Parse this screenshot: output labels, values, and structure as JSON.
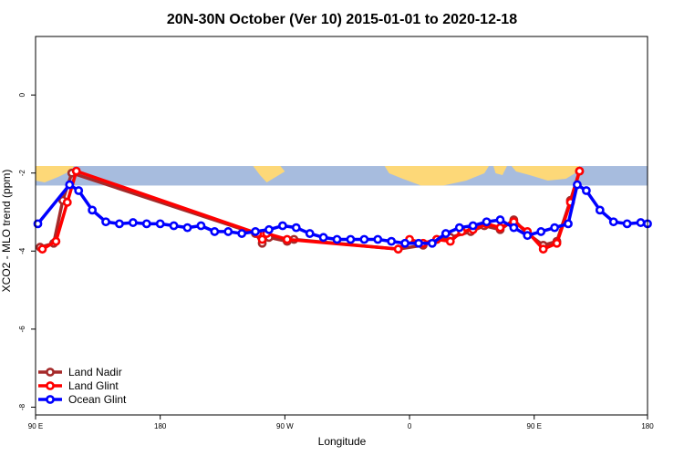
{
  "chart_data": {
    "type": "line",
    "title": "20N-30N October (Ver 10)   2015-01-01 to 2020-12-18",
    "xlabel": "Longitude",
    "ylabel": "XCO2 - MLO trend (ppm)",
    "xlim": [
      -90,
      180
    ],
    "ylim": [
      -8.2,
      1.5
    ],
    "x_ticks": [
      {
        "value": -90,
        "label": "90 E"
      },
      {
        "value": -35,
        "label": "180"
      },
      {
        "value": 20,
        "label": "90 W"
      },
      {
        "value": 75,
        "label": "0"
      },
      {
        "value": 130,
        "label": "90 E"
      },
      {
        "value": 180,
        "label": "180"
      }
    ],
    "y_ticks": [
      {
        "value": 0,
        "label": "0"
      },
      {
        "value": -2,
        "label": "-2"
      },
      {
        "value": -4,
        "label": "-4"
      },
      {
        "value": -6,
        "label": "-6"
      },
      {
        "value": -8,
        "label": "-8"
      }
    ],
    "map_strip": {
      "y_top": -1.82,
      "y_bottom": -2.32
    },
    "legend_position": "bottom-left",
    "series": [
      {
        "name": "Land Nadir",
        "color": "#a52a2a",
        "points": [
          [
            -88,
            -3.9
          ],
          [
            -82,
            -3.8
          ],
          [
            -78,
            -2.7
          ],
          [
            -74,
            -2.0
          ],
          [
            7,
            -3.55
          ],
          [
            10,
            -3.8
          ],
          [
            13,
            -3.65
          ],
          [
            21,
            -3.75
          ],
          [
            24,
            -3.7
          ],
          [
            70,
            -3.95
          ],
          [
            81,
            -3.85
          ],
          [
            87,
            -3.7
          ],
          [
            93,
            -3.65
          ],
          [
            102,
            -3.5
          ],
          [
            108,
            -3.35
          ],
          [
            115,
            -3.45
          ],
          [
            121,
            -3.2
          ],
          [
            127,
            -3.55
          ],
          [
            134,
            -3.85
          ],
          [
            140,
            -3.75
          ],
          [
            146,
            -2.7
          ],
          [
            150,
            -1.95
          ]
        ]
      },
      {
        "name": "Land Glint",
        "color": "#ff0000",
        "points": [
          [
            -87,
            -3.95
          ],
          [
            -81,
            -3.75
          ],
          [
            -76,
            -2.75
          ],
          [
            -72,
            -1.95
          ],
          [
            8,
            -3.55
          ],
          [
            10,
            -3.7
          ],
          [
            12,
            -3.55
          ],
          [
            21,
            -3.7
          ],
          [
            70,
            -3.95
          ],
          [
            75,
            -3.7
          ],
          [
            81,
            -3.8
          ],
          [
            87,
            -3.7
          ],
          [
            93,
            -3.75
          ],
          [
            98,
            -3.5
          ],
          [
            103,
            -3.45
          ],
          [
            109,
            -3.3
          ],
          [
            115,
            -3.4
          ],
          [
            121,
            -3.25
          ],
          [
            127,
            -3.5
          ],
          [
            134,
            -3.95
          ],
          [
            140,
            -3.8
          ],
          [
            146,
            -2.75
          ],
          [
            150,
            -1.95
          ]
        ]
      },
      {
        "name": "Ocean Glint",
        "color": "#0000ff",
        "points": [
          [
            -89,
            -3.3
          ],
          [
            -75,
            -2.3
          ],
          [
            -71,
            -2.45
          ],
          [
            -65,
            -2.95
          ],
          [
            -59,
            -3.25
          ],
          [
            -53,
            -3.3
          ],
          [
            -47,
            -3.27
          ],
          [
            -41,
            -3.3
          ],
          [
            -35,
            -3.3
          ],
          [
            -29,
            -3.35
          ],
          [
            -23,
            -3.4
          ],
          [
            -17,
            -3.35
          ],
          [
            -11,
            -3.5
          ],
          [
            -5,
            -3.5
          ],
          [
            1,
            -3.55
          ],
          [
            7,
            -3.5
          ],
          [
            13,
            -3.45
          ],
          [
            19,
            -3.35
          ],
          [
            25,
            -3.4
          ],
          [
            31,
            -3.55
          ],
          [
            37,
            -3.65
          ],
          [
            43,
            -3.7
          ],
          [
            49,
            -3.7
          ],
          [
            55,
            -3.7
          ],
          [
            61,
            -3.7
          ],
          [
            67,
            -3.75
          ],
          [
            73,
            -3.8
          ],
          [
            79,
            -3.8
          ],
          [
            85,
            -3.8
          ],
          [
            91,
            -3.55
          ],
          [
            97,
            -3.4
          ],
          [
            103,
            -3.35
          ],
          [
            109,
            -3.25
          ],
          [
            115,
            -3.2
          ],
          [
            121,
            -3.4
          ],
          [
            127,
            -3.6
          ],
          [
            133,
            -3.5
          ],
          [
            139,
            -3.4
          ],
          [
            145,
            -3.3
          ],
          [
            149,
            -2.3
          ],
          [
            153,
            -2.45
          ],
          [
            159,
            -2.95
          ],
          [
            165,
            -3.25
          ],
          [
            171,
            -3.3
          ],
          [
            177,
            -3.27
          ],
          [
            180,
            -3.3
          ]
        ]
      }
    ]
  }
}
